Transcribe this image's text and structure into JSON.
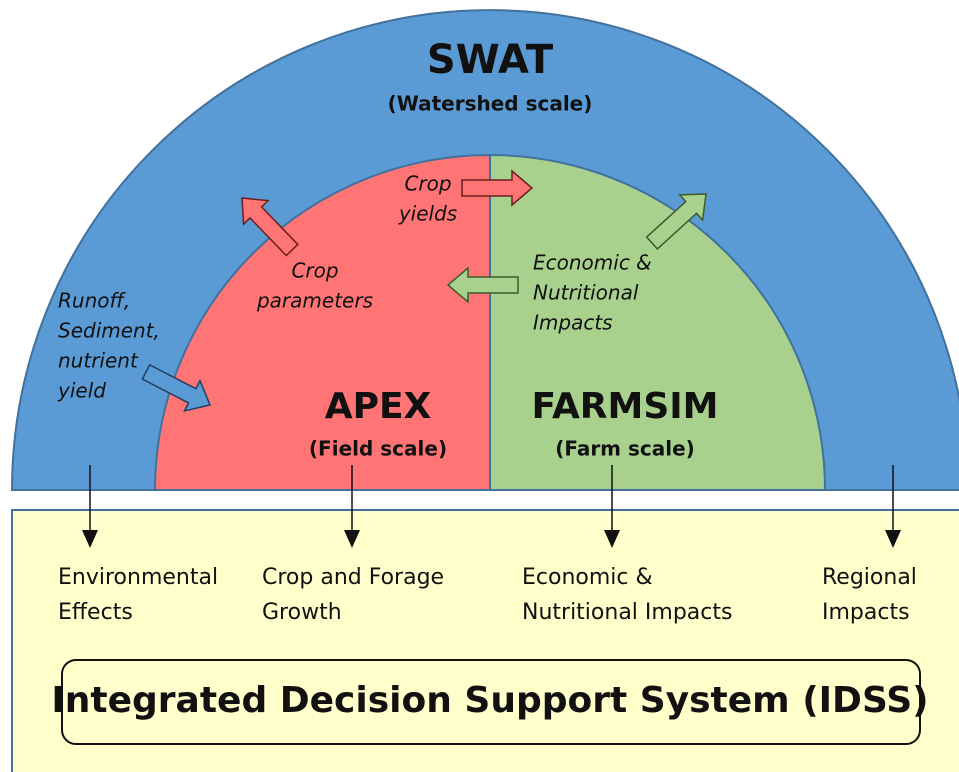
{
  "outer": {
    "title": "SWAT",
    "subtitle": "(Watershed scale)"
  },
  "left": {
    "title": "APEX",
    "subtitle": "(Field scale)"
  },
  "right": {
    "title": "FARMSIM",
    "subtitle": "(Farm scale)"
  },
  "flows": [
    {
      "lines": [
        "Runoff,",
        "Sediment,",
        "nutrient",
        "yield"
      ]
    },
    {
      "lines": [
        "Crop",
        "parameters"
      ]
    },
    {
      "lines": [
        "Crop",
        "yields"
      ]
    },
    {
      "lines": [
        "Economic &",
        "Nutritional",
        "Impacts"
      ]
    }
  ],
  "outputs": [
    {
      "lines": [
        "Environmental",
        "Effects"
      ]
    },
    {
      "lines": [
        "Crop and Forage",
        "Growth"
      ]
    },
    {
      "lines": [
        "Economic &",
        "Nutritional Impacts"
      ]
    },
    {
      "lines": [
        "Regional",
        "Impacts"
      ]
    }
  ],
  "footer": "Integrated Decision Support System (IDSS)"
}
